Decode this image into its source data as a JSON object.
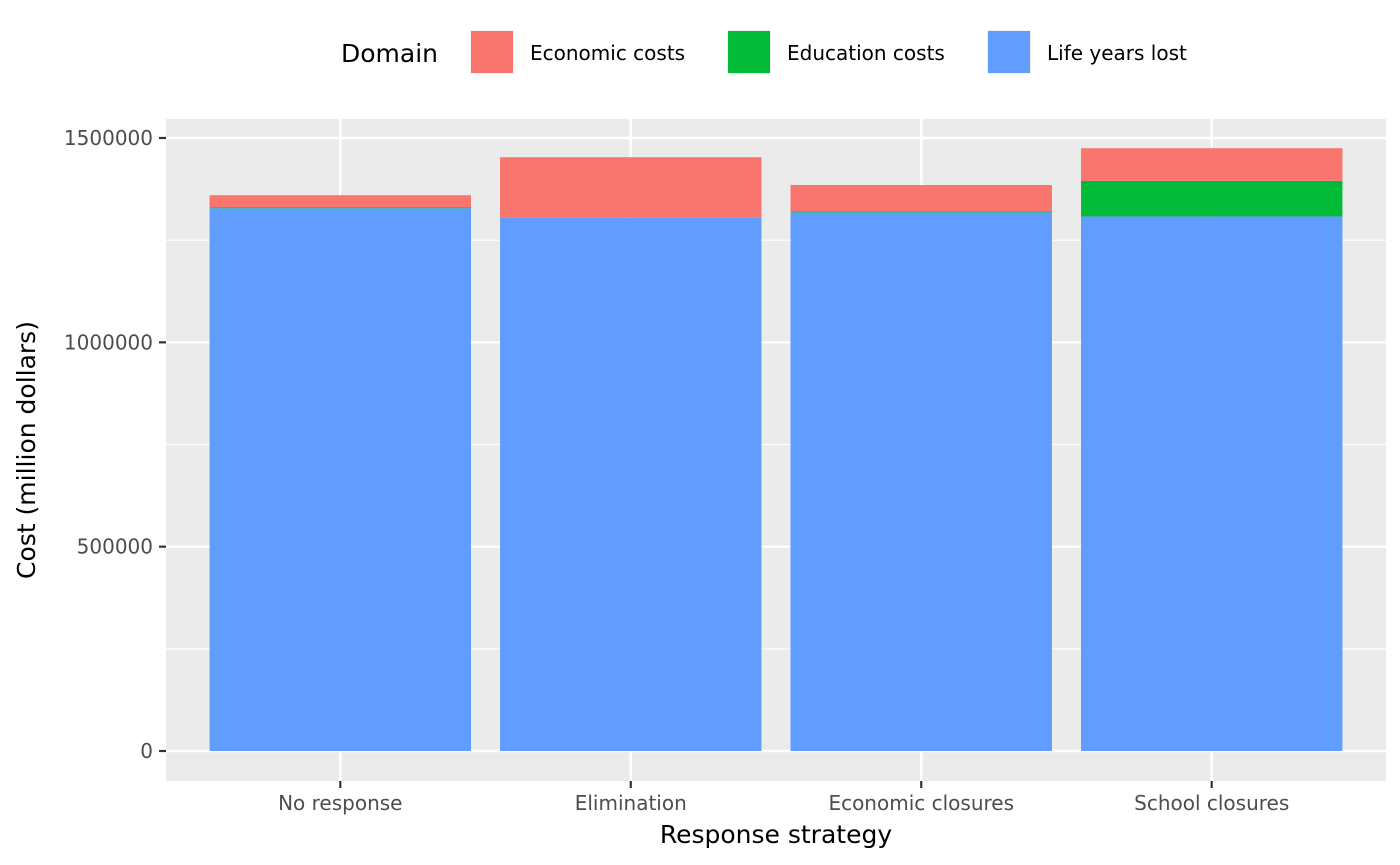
{
  "chart_data": {
    "type": "bar",
    "stacked": true,
    "title": "",
    "xlabel": "Response strategy",
    "ylabel": "Cost (million dollars)",
    "ylim": [
      0,
      1500000
    ],
    "y_ticks": [
      0,
      500000,
      1000000,
      1500000
    ],
    "y_tick_labels": [
      "0",
      "500000",
      "1000000",
      "1500000"
    ],
    "grid": true,
    "legend": {
      "title": "Domain",
      "position": "top"
    },
    "categories": [
      "No response",
      "Elimination",
      "Economic closures",
      "School closures"
    ],
    "series": [
      {
        "name": "Life years lost",
        "color": "#619CFF",
        "values": [
          1328000,
          1305000,
          1318000,
          1308000
        ]
      },
      {
        "name": "Education costs",
        "color": "#00BA38",
        "values": [
          2000,
          0,
          2000,
          87000
        ]
      },
      {
        "name": "Economic costs",
        "color": "#F8766D",
        "values": [
          30000,
          148000,
          65000,
          80000
        ]
      }
    ],
    "legend_order": [
      "Economic costs",
      "Education costs",
      "Life years lost"
    ]
  }
}
